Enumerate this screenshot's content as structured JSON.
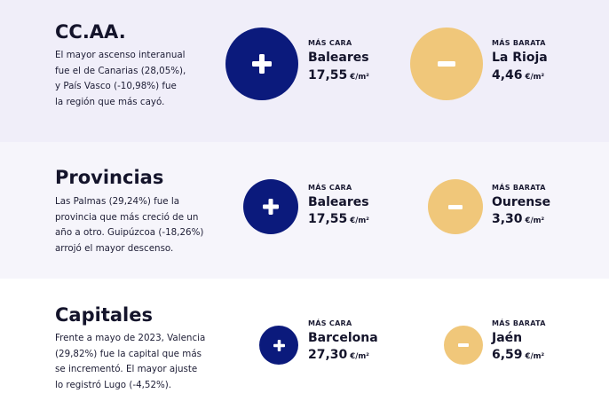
{
  "sections": [
    {
      "title": "CC.AA.",
      "description": [
        "El mayor ascenso interanual",
        "fue el de Canarias (28,05%),",
        "y País Vasco (-10,98%) fue",
        "la región que más cayó."
      ],
      "max": {
        "label": "MÁS CARA",
        "name": "Baleares",
        "value": "17,55",
        "unit": "€/m²",
        "symbol": "plus-icon"
      },
      "min": {
        "label": "MÁS BARATA",
        "name": "La Rioja",
        "value": "4,46",
        "unit": "€/m²",
        "symbol": "minus-icon"
      }
    },
    {
      "title": "Provincias",
      "description": [
        "Las Palmas (29,24%) fue la",
        "provincia que más creció de un",
        "año a otro. Guipúzcoa (-18,26%)",
        "arrojó el mayor descenso."
      ],
      "max": {
        "label": "MÁS CARA",
        "name": "Baleares",
        "value": "17,55",
        "unit": "€/m²",
        "symbol": "plus-icon"
      },
      "min": {
        "label": "MÁS BARATA",
        "name": "Ourense",
        "value": "3,30",
        "unit": "€/m²",
        "symbol": "minus-icon"
      }
    },
    {
      "title": "Capitales",
      "description": [
        "Frente a mayo de 2023, Valencia",
        "(29,82%) fue la capital que más",
        "se incrementó. El mayor ajuste",
        "lo registró Lugo (-4,52%)."
      ],
      "max": {
        "label": "MÁS CARA",
        "name": "Barcelona",
        "value": "27,30",
        "unit": "€/m²",
        "symbol": "plus-icon"
      },
      "min": {
        "label": "MÁS BARATA",
        "name": "Jaén",
        "value": "6,59",
        "unit": "€/m²",
        "symbol": "minus-icon"
      }
    }
  ],
  "colors": {
    "plus": "#0b1a7c",
    "minus": "#f0c77a",
    "band1": "#f0eef9",
    "band2": "#f6f5fb",
    "band3": "#ffffff"
  }
}
